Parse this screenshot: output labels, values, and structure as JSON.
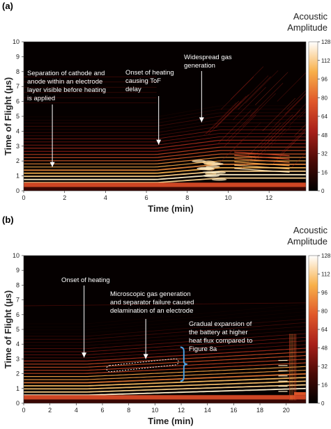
{
  "chart_data": [
    {
      "type": "heatmap",
      "panel_label": "(a)",
      "xlabel": "Time (min)",
      "ylabel": "Time of Flight (μs)",
      "xlim": [
        0,
        13.8
      ],
      "ylim": [
        0,
        10
      ],
      "xticks": [
        0,
        2,
        4,
        6,
        8,
        10,
        12
      ],
      "yticks": [
        0,
        1,
        2,
        3,
        4,
        5,
        6,
        7,
        8,
        9,
        10
      ],
      "colorbar": {
        "title": [
          "Acoustic",
          "Amplitude"
        ],
        "ticks": [
          0,
          16,
          32,
          48,
          64,
          80,
          96,
          112,
          128
        ],
        "range": [
          0,
          128
        ]
      },
      "colors": {
        "background": "#050000",
        "low": "#3a0605",
        "mid": "#c2301c",
        "high": "#f5a23a",
        "max": "#ffffe6",
        "annotation": "#ffffff"
      },
      "events": {
        "heating_onset": 6.5,
        "gas_generation": 8.9,
        "peak": 9.6
      },
      "annotations": [
        {
          "lines": [
            "Separation of cathode and",
            "anode within an electrode",
            "layer visible before heating",
            "is applied"
          ],
          "points_to": [
            1.4,
            1.6
          ]
        },
        {
          "lines": [
            "Onset of heating",
            "causing ToF",
            "delay"
          ],
          "points_to": [
            6.6,
            3.1
          ]
        },
        {
          "lines": [
            "Widespread gas",
            "generation"
          ],
          "points_to": [
            8.7,
            4.6
          ]
        }
      ],
      "grid": false
    },
    {
      "type": "heatmap",
      "panel_label": "(b)",
      "xlabel": "Time (min)",
      "ylabel": "Time of Flight (μs)",
      "xlim": [
        0,
        21.5
      ],
      "ylim": [
        0,
        10
      ],
      "xticks": [
        0,
        2,
        4,
        6,
        8,
        10,
        12,
        14,
        16,
        18,
        20
      ],
      "yticks": [
        0,
        1,
        2,
        3,
        4,
        5,
        6,
        7,
        8,
        9,
        10
      ],
      "colorbar": {
        "title": [
          "Acoustic",
          "Amplitude"
        ],
        "ticks": [
          0,
          16,
          32,
          48,
          64,
          80,
          96,
          112,
          128
        ],
        "range": [
          0,
          128
        ]
      },
      "colors": {
        "background": "#050000",
        "low": "#3a0605",
        "mid": "#c2301c",
        "high": "#f5a23a",
        "max": "#ffffe6",
        "annotation": "#ffffff",
        "bracket": "#4a9fe0"
      },
      "events": {
        "heating_onset": 4.8,
        "failure": 20.3
      },
      "annotations": [
        {
          "lines": [
            "Onset of heating"
          ],
          "points_to": [
            4.6,
            3.1
          ]
        },
        {
          "lines": [
            "Microscopic gas generation",
            "and separator failure caused",
            "delamination of an electrode"
          ],
          "points_to": [
            9.3,
            3.0
          ]
        },
        {
          "lines": [
            "Gradual expansion of",
            "the battery at higher",
            "heat flux compared to",
            "Figure 8a"
          ],
          "bracket_y": [
            1.5,
            3.8
          ]
        }
      ],
      "grid": false
    }
  ]
}
